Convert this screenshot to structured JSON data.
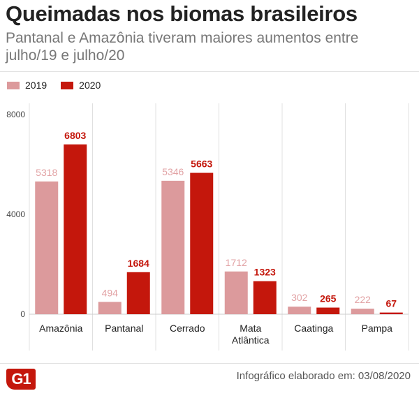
{
  "header": {
    "title": "Queimadas nos biomas brasileiros",
    "subtitle": "Pantanal e Amazônia tiveram maiores aumentos entre julho/19 e julho/20"
  },
  "footer": {
    "logo_text": "G1",
    "credit": "Infográfico elaborado em: 03/08/2020"
  },
  "colors": {
    "s2019": "#dc9a9c",
    "s2020": "#c4170c",
    "label2019": "#e2a3a5",
    "label2020": "#c4170c"
  },
  "chart_data": {
    "type": "bar",
    "categories": [
      "Amazônia",
      "Pantanal",
      "Cerrado",
      "Mata\nAtlântica",
      "Caatinga",
      "Pampa"
    ],
    "series": [
      {
        "name": "2019",
        "values": [
          5318,
          494,
          5346,
          1712,
          302,
          222
        ]
      },
      {
        "name": "2020",
        "values": [
          6803,
          1684,
          5663,
          1323,
          265,
          67
        ]
      }
    ],
    "ylim": [
      0,
      8000
    ],
    "yticks": [
      0,
      4000,
      8000
    ],
    "legend": "top-left",
    "data_labels": true
  }
}
